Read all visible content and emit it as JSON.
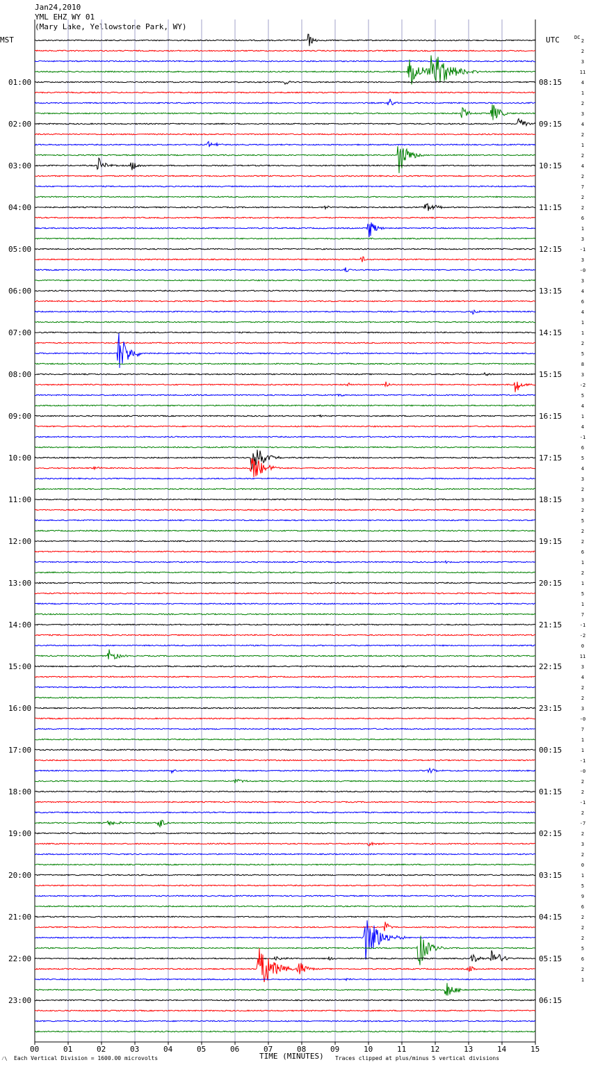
{
  "header": {
    "line1": "Jan24,2010",
    "line2": "YML EHZ WY 01",
    "line3": "(Mary Lake, Yellowstone Park, WY)"
  },
  "labels": {
    "left_tz": "MST",
    "right_tz": "UTC",
    "dc": "DC",
    "xlabel": "TIME (MINUTES)",
    "footer_left": "Each Vertical Division = 1600.00 microvolts",
    "footer_right": "Traces clipped at plus/minus 5 vertical divisions",
    "footer_mark": "⁄\\"
  },
  "colors": {
    "trace_cycle": [
      "#000000",
      "#ff0000",
      "#0000ff",
      "#008000"
    ],
    "grid": "#a0a0c8"
  },
  "chart_data": {
    "type": "line",
    "xlim": [
      0,
      15
    ],
    "x_ticks": [
      "00",
      "01",
      "02",
      "03",
      "04",
      "05",
      "06",
      "07",
      "08",
      "09",
      "10",
      "11",
      "12",
      "13",
      "14",
      "15"
    ],
    "left_hour_labels": [
      "01:00",
      "02:00",
      "03:00",
      "04:00",
      "05:00",
      "06:00",
      "07:00",
      "08:00",
      "09:00",
      "10:00",
      "11:00",
      "12:00",
      "13:00",
      "14:00",
      "15:00",
      "16:00",
      "17:00",
      "18:00",
      "19:00",
      "20:00",
      "21:00",
      "22:00",
      "23:00"
    ],
    "right_hour_labels": [
      "08:15",
      "09:15",
      "10:15",
      "11:15",
      "12:15",
      "13:15",
      "14:15",
      "15:15",
      "16:15",
      "17:15",
      "18:15",
      "19:15",
      "20:15",
      "21:15",
      "22:15",
      "23:15",
      "00:15",
      "01:15",
      "02:15",
      "03:15",
      "04:15",
      "05:15",
      "06:15"
    ],
    "dc_offsets": [
      "2",
      "2",
      "3",
      "11",
      "4",
      "1",
      "2",
      "3",
      "4",
      "2",
      "1",
      "2",
      "4",
      "2",
      "7",
      "2",
      "2",
      "6",
      "1",
      "3",
      "-1",
      "3",
      "-0",
      "3",
      "4",
      "6",
      "4",
      "1",
      "1",
      "2",
      "5",
      "8",
      "3",
      "-2",
      "5",
      "4",
      "1",
      "4",
      "-1",
      "6",
      "5",
      "4",
      "3",
      "2",
      "3",
      "2",
      "5",
      "2",
      "2",
      "6",
      "1",
      "2",
      "1",
      "5",
      "1",
      "7",
      "-1",
      "-2",
      "0",
      "11",
      "3",
      "4",
      "2",
      "2",
      "3",
      "-0",
      "7",
      "1",
      "1",
      "-1",
      "-0",
      "2",
      "2",
      "-1",
      "2",
      "-7",
      "2",
      "3",
      "2",
      "0",
      "1",
      "5",
      "9",
      "6",
      "2",
      "2",
      "2",
      "5",
      "6",
      "2",
      "1"
    ],
    "events": [
      {
        "row": 0,
        "minute": 8.2,
        "amp": 12,
        "dur": 0.4
      },
      {
        "row": 3,
        "minute": 0.5,
        "amp": 2,
        "dur": 0.8
      },
      {
        "row": 3,
        "minute": 11.2,
        "amp": 22,
        "dur": 1.5
      },
      {
        "row": 3,
        "minute": 11.9,
        "amp": 40,
        "dur": 1.4
      },
      {
        "row": 4,
        "minute": 7.5,
        "amp": 4,
        "dur": 0.4
      },
      {
        "row": 6,
        "minute": 10.6,
        "amp": 10,
        "dur": 0.4
      },
      {
        "row": 7,
        "minute": 12.8,
        "amp": 9,
        "dur": 0.6
      },
      {
        "row": 7,
        "minute": 13.7,
        "amp": 16,
        "dur": 0.7
      },
      {
        "row": 8,
        "minute": 14.5,
        "amp": 14,
        "dur": 0.5
      },
      {
        "row": 10,
        "minute": 5.2,
        "amp": 5,
        "dur": 0.8
      },
      {
        "row": 11,
        "minute": 10.9,
        "amp": 30,
        "dur": 0.8
      },
      {
        "row": 12,
        "minute": 1.9,
        "amp": 12,
        "dur": 0.6
      },
      {
        "row": 12,
        "minute": 2.9,
        "amp": 9,
        "dur": 0.5
      },
      {
        "row": 16,
        "minute": 8.7,
        "amp": 3,
        "dur": 0.5
      },
      {
        "row": 16,
        "minute": 11.7,
        "amp": 8,
        "dur": 0.9
      },
      {
        "row": 18,
        "minute": 10.0,
        "amp": 18,
        "dur": 0.6
      },
      {
        "row": 21,
        "minute": 9.8,
        "amp": 7,
        "dur": 0.3
      },
      {
        "row": 22,
        "minute": 9.3,
        "amp": 5,
        "dur": 0.3
      },
      {
        "row": 26,
        "minute": 13.1,
        "amp": 6,
        "dur": 0.4
      },
      {
        "row": 27,
        "minute": 1.3,
        "amp": 2,
        "dur": 0.4
      },
      {
        "row": 30,
        "minute": 2.5,
        "amp": 35,
        "dur": 0.9
      },
      {
        "row": 32,
        "minute": 13.5,
        "amp": 3,
        "dur": 0.3
      },
      {
        "row": 33,
        "minute": 9.4,
        "amp": 3,
        "dur": 0.3
      },
      {
        "row": 33,
        "minute": 10.5,
        "amp": 5,
        "dur": 0.4
      },
      {
        "row": 33,
        "minute": 14.4,
        "amp": 14,
        "dur": 0.5
      },
      {
        "row": 34,
        "minute": 9.1,
        "amp": 3,
        "dur": 0.3
      },
      {
        "row": 36,
        "minute": 8.5,
        "amp": 3,
        "dur": 0.3
      },
      {
        "row": 40,
        "minute": 6.5,
        "amp": 30,
        "dur": 0.9
      },
      {
        "row": 41,
        "minute": 1.8,
        "amp": 5,
        "dur": 0.4
      },
      {
        "row": 41,
        "minute": 6.5,
        "amp": 24,
        "dur": 1.0
      },
      {
        "row": 50,
        "minute": 12.3,
        "amp": 2,
        "dur": 0.3
      },
      {
        "row": 59,
        "minute": 2.2,
        "amp": 12,
        "dur": 0.7
      },
      {
        "row": 70,
        "minute": 4.1,
        "amp": 5,
        "dur": 0.4
      },
      {
        "row": 70,
        "minute": 11.8,
        "amp": 5,
        "dur": 0.5
      },
      {
        "row": 71,
        "minute": 6.0,
        "amp": 4,
        "dur": 0.8
      },
      {
        "row": 75,
        "minute": 2.2,
        "amp": 5,
        "dur": 0.9
      },
      {
        "row": 75,
        "minute": 3.7,
        "amp": 12,
        "dur": 0.5
      },
      {
        "row": 77,
        "minute": 10.0,
        "amp": 3,
        "dur": 0.9
      },
      {
        "row": 85,
        "minute": 10.5,
        "amp": 14,
        "dur": 0.3
      },
      {
        "row": 86,
        "minute": 9.9,
        "amp": 40,
        "dur": 1.2
      },
      {
        "row": 87,
        "minute": 11.5,
        "amp": 30,
        "dur": 0.8
      },
      {
        "row": 88,
        "minute": 7.2,
        "amp": 5,
        "dur": 0.6
      },
      {
        "row": 88,
        "minute": 8.8,
        "amp": 4,
        "dur": 0.4
      },
      {
        "row": 88,
        "minute": 13.1,
        "amp": 8,
        "dur": 0.6
      },
      {
        "row": 88,
        "minute": 13.7,
        "amp": 16,
        "dur": 0.8
      },
      {
        "row": 89,
        "minute": 6.7,
        "amp": 40,
        "dur": 1.2
      },
      {
        "row": 89,
        "minute": 7.9,
        "amp": 14,
        "dur": 0.6
      },
      {
        "row": 89,
        "minute": 13.0,
        "amp": 7,
        "dur": 0.4
      },
      {
        "row": 90,
        "minute": 9.3,
        "amp": 3,
        "dur": 0.3
      },
      {
        "row": 91,
        "minute": 12.3,
        "amp": 16,
        "dur": 0.7
      }
    ]
  }
}
